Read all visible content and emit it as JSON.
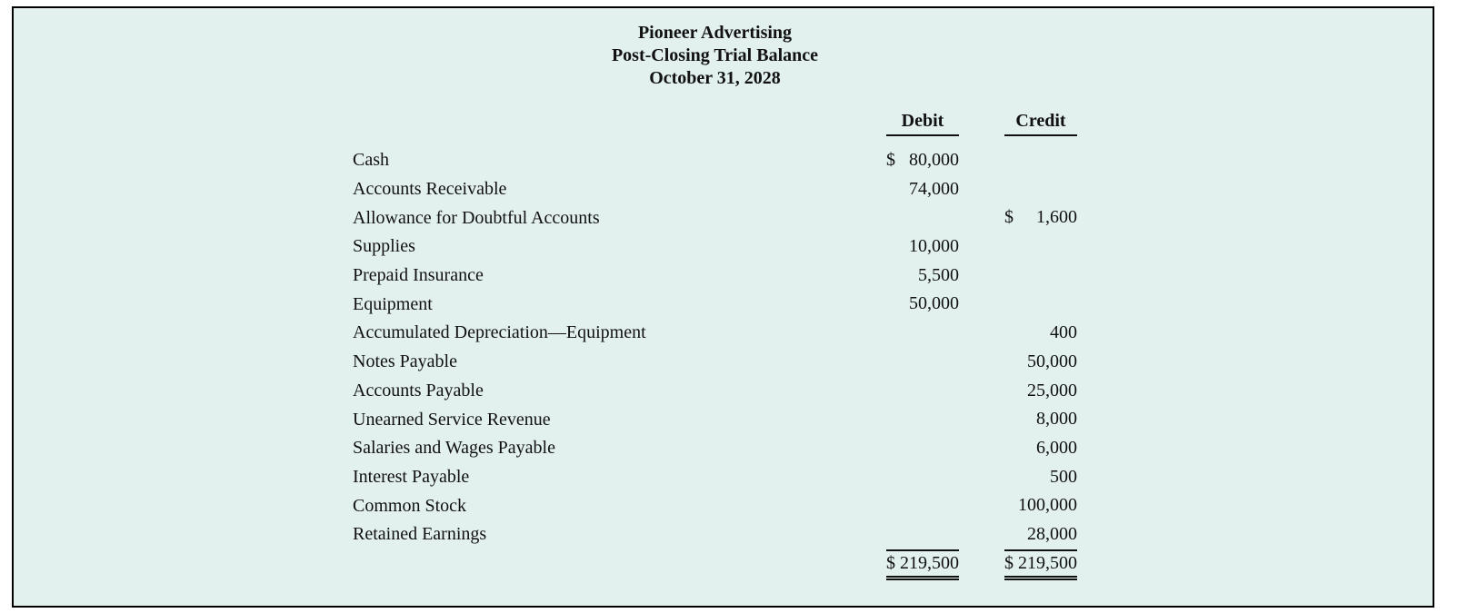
{
  "theme": {
    "panel_bg": "#e2f0ee",
    "panel_border": "#000000",
    "ink": "#111111"
  },
  "header": {
    "company": "Pioneer Advertising",
    "statement": "Post-Closing Trial Balance",
    "date": "October 31, 2028"
  },
  "table": {
    "debit_header": "Debit",
    "credit_header": "Credit",
    "rows": [
      {
        "account": "Cash",
        "debit_dollar": "$",
        "debit": "80,000",
        "credit_dollar": "",
        "credit": ""
      },
      {
        "account": "Accounts Receivable",
        "debit_dollar": "",
        "debit": "74,000",
        "credit_dollar": "",
        "credit": ""
      },
      {
        "account": "Allowance for Doubtful Accounts",
        "debit_dollar": "",
        "debit": "",
        "credit_dollar": "$",
        "credit": "1,600"
      },
      {
        "account": "Supplies",
        "debit_dollar": "",
        "debit": "10,000",
        "credit_dollar": "",
        "credit": ""
      },
      {
        "account": "Prepaid Insurance",
        "debit_dollar": "",
        "debit": "5,500",
        "credit_dollar": "",
        "credit": ""
      },
      {
        "account": "Equipment",
        "debit_dollar": "",
        "debit": "50,000",
        "credit_dollar": "",
        "credit": ""
      },
      {
        "account": "Accumulated Depreciation—Equipment",
        "debit_dollar": "",
        "debit": "",
        "credit_dollar": "",
        "credit": "400"
      },
      {
        "account": "Notes Payable",
        "debit_dollar": "",
        "debit": "",
        "credit_dollar": "",
        "credit": "50,000"
      },
      {
        "account": "Accounts Payable",
        "debit_dollar": "",
        "debit": "",
        "credit_dollar": "",
        "credit": "25,000"
      },
      {
        "account": "Unearned Service Revenue",
        "debit_dollar": "",
        "debit": "",
        "credit_dollar": "",
        "credit": "8,000"
      },
      {
        "account": "Salaries and Wages Payable",
        "debit_dollar": "",
        "debit": "",
        "credit_dollar": "",
        "credit": "6,000"
      },
      {
        "account": "Interest Payable",
        "debit_dollar": "",
        "debit": "",
        "credit_dollar": "",
        "credit": "500"
      },
      {
        "account": "Common Stock",
        "debit_dollar": "",
        "debit": "",
        "credit_dollar": "",
        "credit": "100,000"
      },
      {
        "account": "Retained Earnings",
        "debit_dollar": "",
        "debit": "",
        "credit_dollar": "",
        "credit": "28,000"
      }
    ],
    "totals": {
      "debit_dollar": "$",
      "debit": "219,500",
      "credit_dollar": "$",
      "credit": "219,500"
    }
  }
}
